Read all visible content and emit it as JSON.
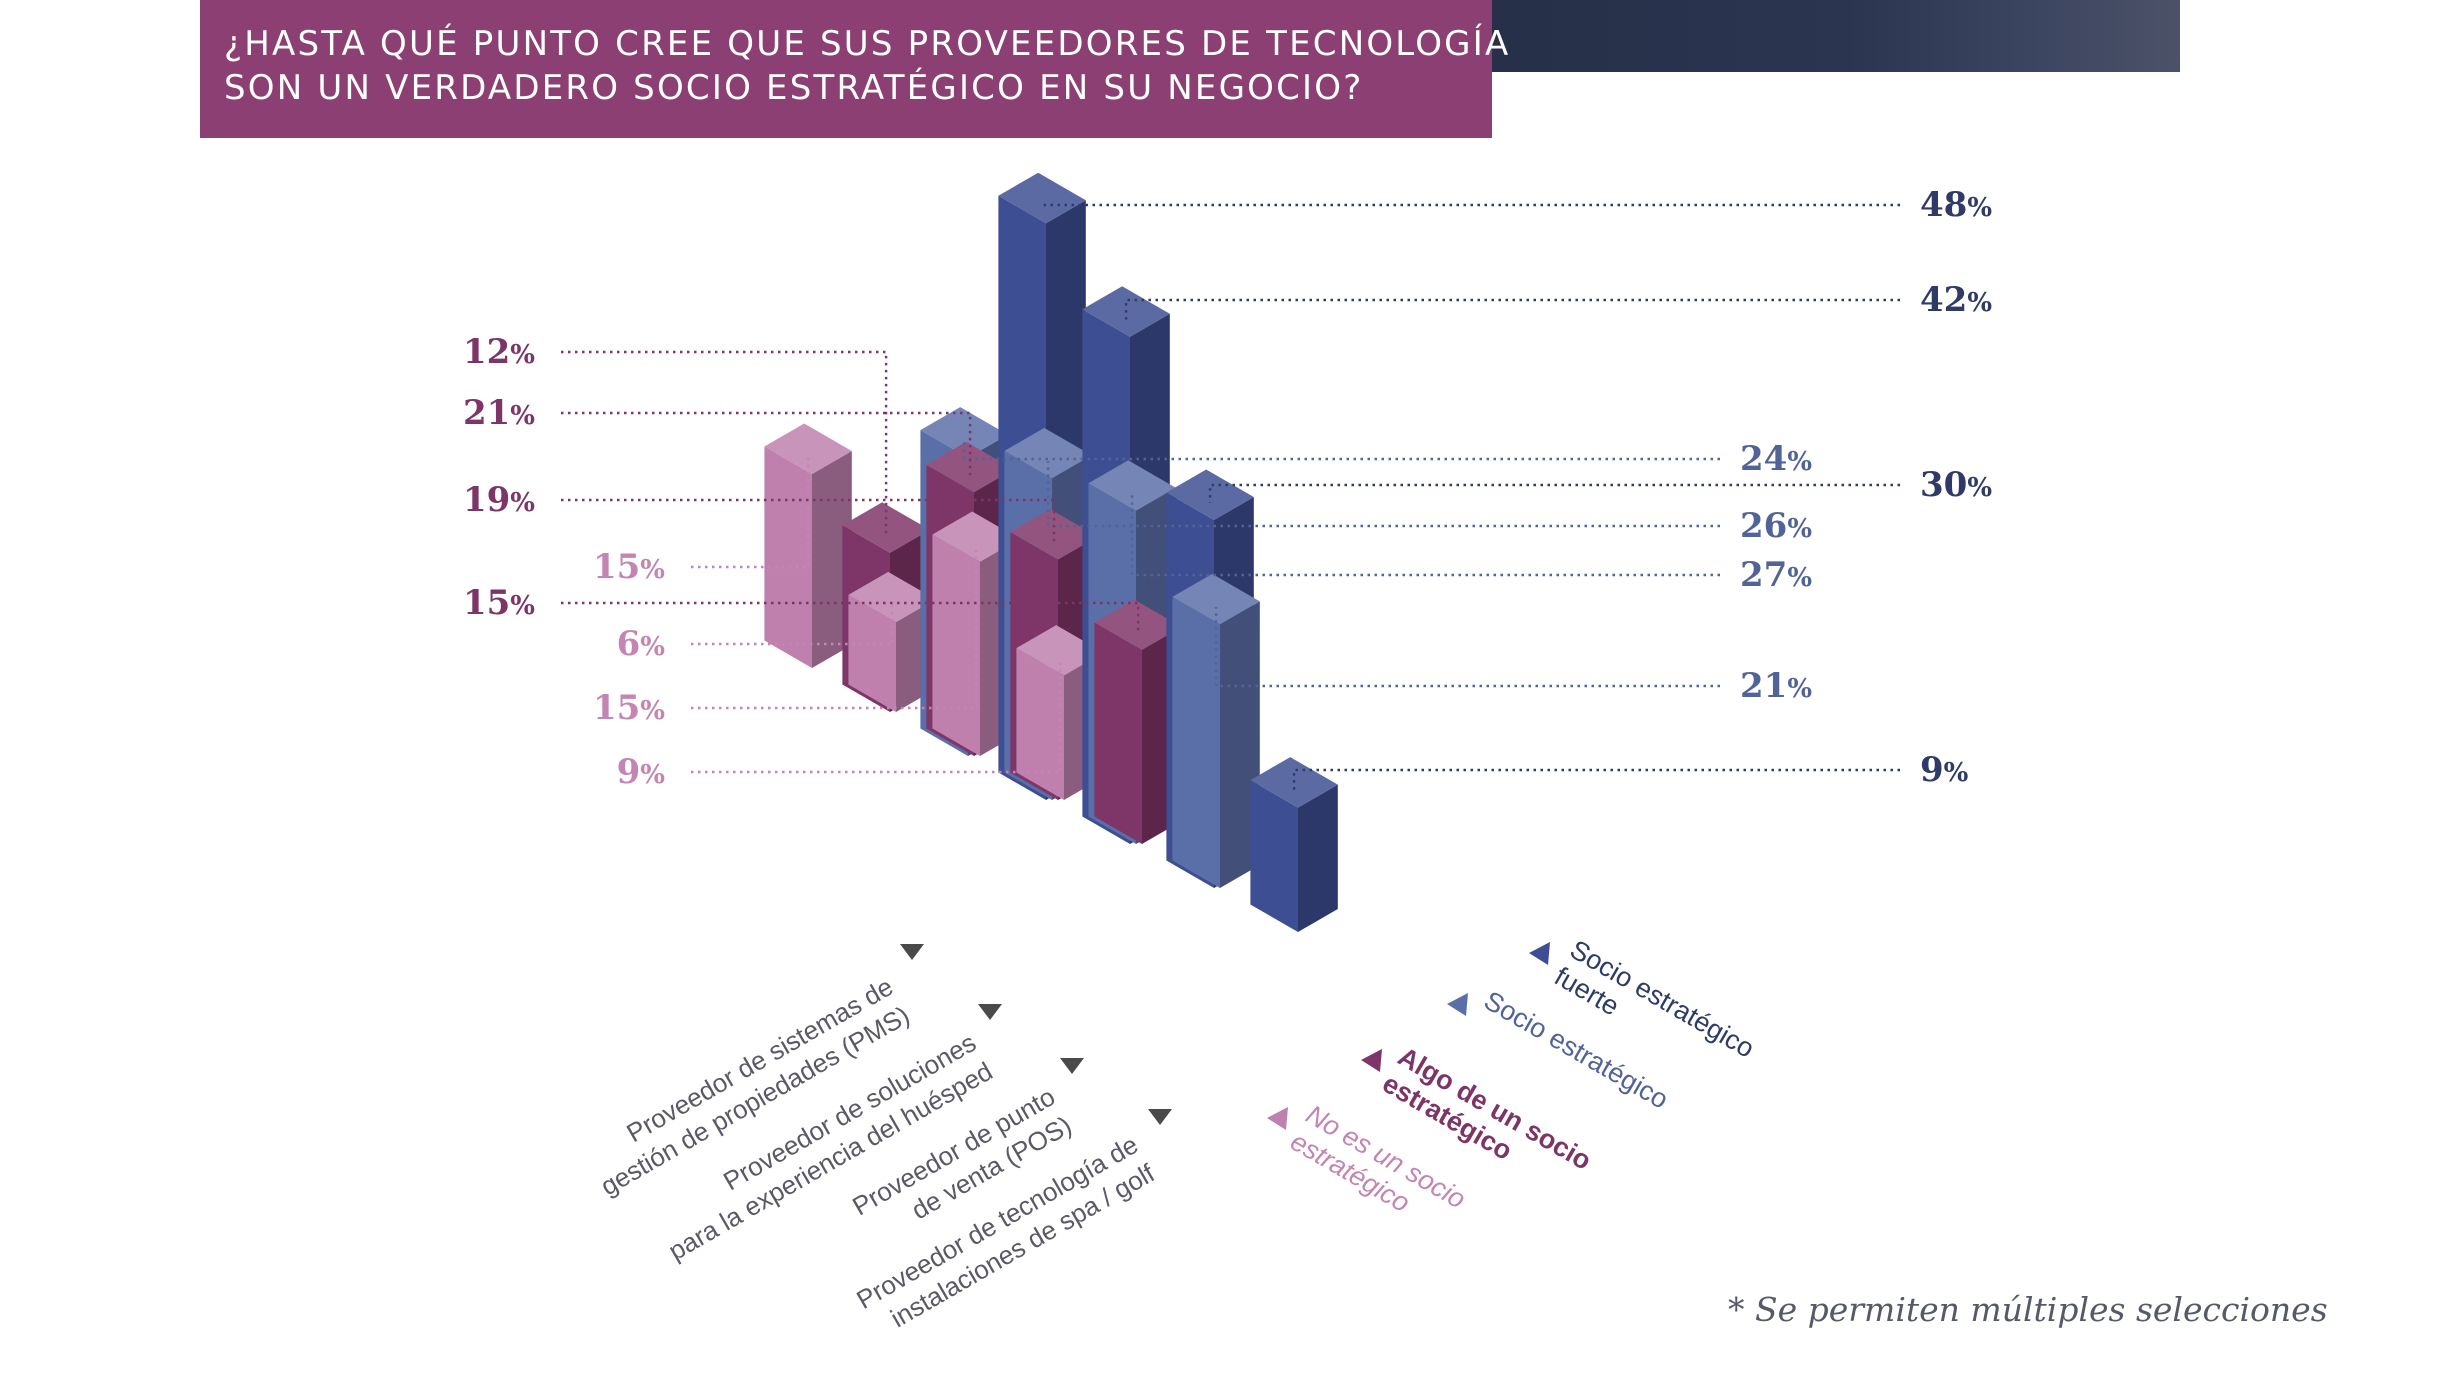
{
  "header": {
    "title_line1": "¿HASTA QUÉ PUNTO CREE QUE SUS PROVEEDORES DE TECNOLOGÍA",
    "title_line2": "SON UN VERDADERO SOCIO ESTRATÉGICO EN SU NEGOCIO?"
  },
  "footnote": "* Se permiten múltiples selecciones",
  "chart_data": {
    "type": "bar",
    "variant": "3d-isometric-grouped",
    "categories": [
      "Proveedor de sistemas de gestión de propiedades (PMS)",
      "Proveedor de soluciones para la experiencia del huésped",
      "Proveedor de punto de venta (POS)",
      "Proveedor de tecnología de instalaciones de spa / golf"
    ],
    "category_label_lines": [
      [
        "Proveedor de sistemas de",
        "gestión de propiedades (PMS)"
      ],
      [
        "Proveedor de soluciones",
        "para la experiencia del huésped"
      ],
      [
        "Proveedor de punto",
        "de venta (POS)"
      ],
      [
        "Proveedor de tecnología de",
        "instalaciones de spa / golf"
      ]
    ],
    "series": [
      {
        "name": "Socio estratégico fuerte",
        "label_lines": [
          "Socio estratégico",
          "fuerte"
        ],
        "color": "#3d4e92",
        "values": [
          48,
          42,
          30,
          9
        ]
      },
      {
        "name": "Socio estratégico",
        "label_lines": [
          "Socio estratégico"
        ],
        "color": "#5a6ea8",
        "values": [
          24,
          26,
          27,
          21
        ]
      },
      {
        "name": "Algo de un socio estratégico",
        "label_lines": [
          "Algo de un socio",
          "estratégico"
        ],
        "color": "#7e3567",
        "values": [
          12,
          21,
          19,
          15
        ]
      },
      {
        "name": "No es un socio estratégico",
        "label_lines": [
          "No es un socio",
          "estratégico"
        ],
        "color": "#bf80ad",
        "values": [
          15,
          6,
          15,
          9
        ]
      }
    ],
    "value_suffix": "%",
    "arrow_color": "#4a4a4a"
  }
}
